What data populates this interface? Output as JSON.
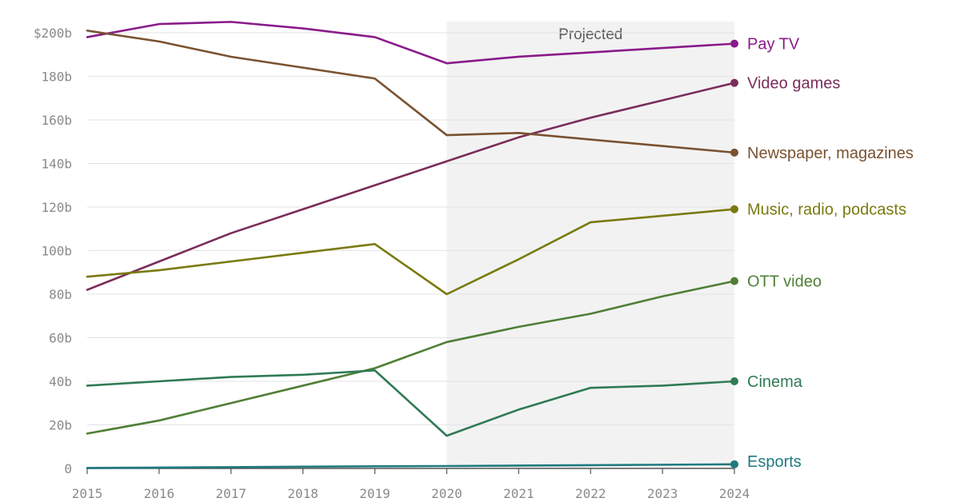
{
  "chart_data": {
    "type": "line",
    "title": "",
    "xlabel": "",
    "ylabel": "",
    "x": [
      2015,
      2016,
      2017,
      2018,
      2019,
      2020,
      2021,
      2022,
      2023,
      2024
    ],
    "x_tick_labels": [
      "2015",
      "2016",
      "2017",
      "2018",
      "2019",
      "2020",
      "2021",
      "2022",
      "2023",
      "2024"
    ],
    "ylim": [
      0,
      200
    ],
    "y_ticks": [
      0,
      20,
      40,
      60,
      80,
      100,
      120,
      140,
      160,
      180,
      200
    ],
    "y_tick_labels": [
      "0",
      "20b",
      "40b",
      "60b",
      "80b",
      "100b",
      "120b",
      "140b",
      "160b",
      "180b",
      "$200b"
    ],
    "grid": "horizontal",
    "shaded_region": {
      "x_start": 2020,
      "x_end": 2024,
      "label": "Projected",
      "color": "#f2f2f2"
    },
    "legend": "direct labels at line ends",
    "series": [
      {
        "name": "Pay TV",
        "color": "#8a1a8a",
        "values": [
          198,
          204,
          205,
          202,
          198,
          186,
          189,
          191,
          193,
          195
        ]
      },
      {
        "name": "Video games",
        "color": "#7a2d5a",
        "values": [
          82,
          95,
          108,
          119,
          130,
          141,
          152,
          161,
          169,
          177
        ]
      },
      {
        "name": "Newspaper, magazines",
        "color": "#7a5230",
        "values": [
          201,
          196,
          189,
          184,
          179,
          153,
          154,
          151,
          148,
          145
        ]
      },
      {
        "name": "Music, radio, podcasts",
        "color": "#7a7a10",
        "values": [
          88,
          91,
          95,
          99,
          103,
          80,
          96,
          113,
          116,
          119
        ]
      },
      {
        "name": "OTT video",
        "color": "#4f7f35",
        "values": [
          16,
          22,
          30,
          38,
          46,
          58,
          65,
          71,
          79,
          86
        ]
      },
      {
        "name": "Cinema",
        "color": "#2f7a55",
        "values": [
          38,
          40,
          42,
          43,
          45,
          15,
          27,
          37,
          38,
          40
        ]
      },
      {
        "name": "Esports",
        "color": "#1f7a80",
        "values": [
          0.2,
          0.4,
          0.6,
          0.8,
          1.0,
          1.1,
          1.3,
          1.5,
          1.7,
          1.9
        ]
      }
    ]
  }
}
